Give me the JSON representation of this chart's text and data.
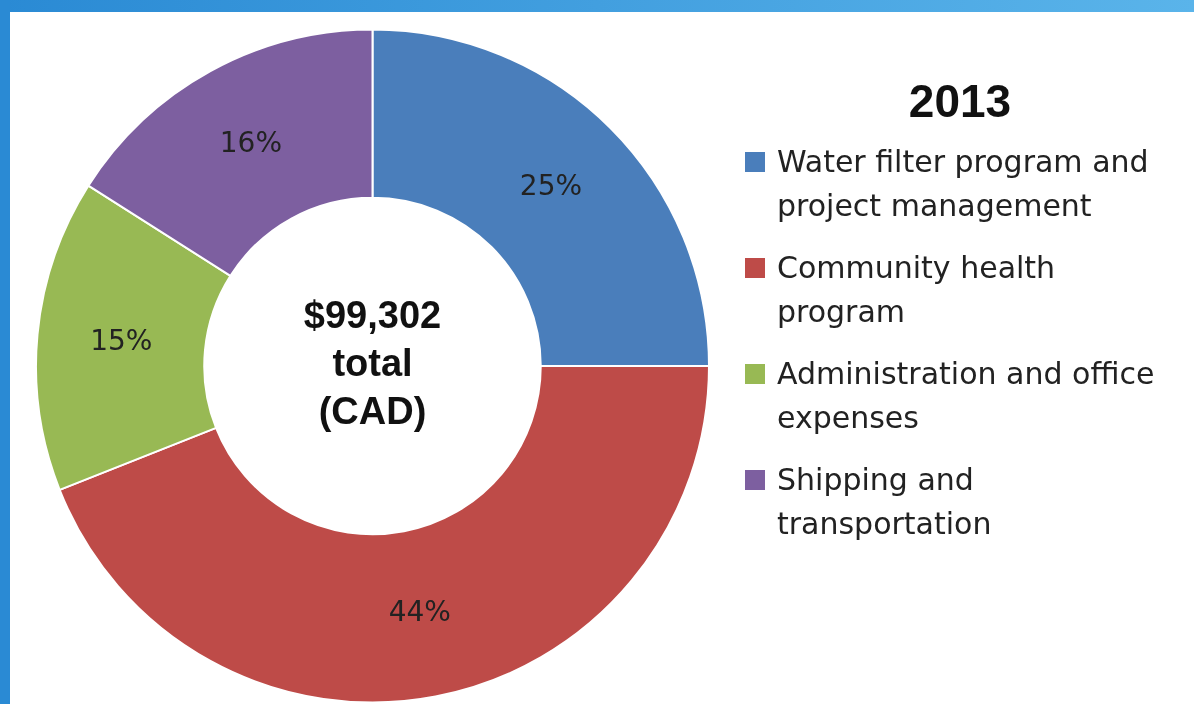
{
  "chart_data": {
    "type": "donut",
    "title": "2013",
    "categories": [
      "Water filter program and project management",
      "Community health program",
      "Administration and office expenses",
      "Shipping and transportation"
    ],
    "values": [
      25,
      44,
      15,
      16
    ],
    "colors": [
      "#4a7ebb",
      "#be4b48",
      "#98b954",
      "#7d5fa0"
    ],
    "value_labels": [
      "25%",
      "44%",
      "15%",
      "16%"
    ],
    "legend": "right",
    "annotations": [
      "$99,302 total (CAD)"
    ]
  }
}
